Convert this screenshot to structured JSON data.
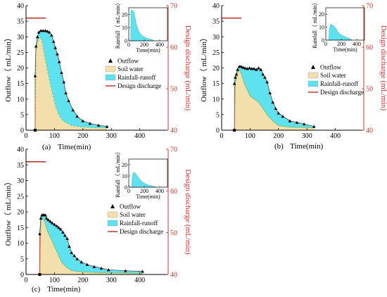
{
  "colors": {
    "soil_water": "#f3dfab",
    "rainfall_runoff": "#5fe2ef",
    "outflow_marker": "#000000",
    "design_line": "#c0392b",
    "right_axis": "#c0392b",
    "divider_line": "#74c47a",
    "inset_fill": "#5fe2ef"
  },
  "legend_labels": {
    "outflow": "Outflow",
    "soil_water": "Soil water",
    "rainfall_runoff": "Rainfall-runoff",
    "design_discharge": "Design discharge"
  },
  "chart_data": [
    {
      "type": "area",
      "caption": "(a)",
      "xlabel": "Time(min)",
      "ylabel": "Outflow（ mL/min）",
      "y2label": "Design discharge (mL/min)",
      "xlim": [
        0,
        500
      ],
      "ylim": [
        0,
        40
      ],
      "y2lim": [
        40,
        70
      ],
      "xticks": [
        0,
        100,
        200,
        300,
        400
      ],
      "yticks": [
        0,
        5,
        10,
        15,
        20,
        25,
        30,
        35,
        40
      ],
      "y2ticks": [
        40,
        50,
        60,
        70
      ],
      "design_discharge": 67,
      "legend_position": "right",
      "outflow_points": [
        [
          32,
          17.5
        ],
        [
          35,
          27
        ],
        [
          40,
          30
        ],
        [
          45,
          31.5
        ],
        [
          52,
          32
        ],
        [
          60,
          32
        ],
        [
          68,
          32
        ],
        [
          75,
          31.8
        ],
        [
          82,
          31.5
        ],
        [
          90,
          30.5
        ],
        [
          97,
          28.5
        ],
        [
          103,
          26.5
        ],
        [
          110,
          24.5
        ],
        [
          117,
          22
        ],
        [
          125,
          18.5
        ],
        [
          133,
          15.5
        ],
        [
          140,
          12
        ],
        [
          150,
          9.5
        ],
        [
          165,
          6.5
        ],
        [
          180,
          4.5
        ],
        [
          200,
          3
        ],
        [
          225,
          2.2
        ],
        [
          255,
          1.6
        ],
        [
          285,
          1.2
        ]
      ],
      "soil_water_points": [
        [
          32,
          0
        ],
        [
          35,
          26
        ],
        [
          42,
          29
        ],
        [
          50,
          30
        ],
        [
          58,
          28
        ],
        [
          65,
          24
        ],
        [
          75,
          19.5
        ],
        [
          85,
          15
        ],
        [
          95,
          11
        ],
        [
          105,
          7.5
        ],
        [
          115,
          5
        ],
        [
          130,
          3
        ],
        [
          160,
          1.5
        ],
        [
          200,
          1
        ],
        [
          240,
          0.8
        ],
        [
          285,
          0.7
        ]
      ],
      "inset": {
        "xlabel": "Time(min)",
        "ylabel": "Rainfall（ mL/min）",
        "xlim": [
          0,
          500
        ],
        "ylim": [
          0,
          25
        ],
        "xticks": [
          0,
          200,
          400
        ],
        "yticks": [
          0,
          10,
          20
        ],
        "points": [
          [
            0,
            0
          ],
          [
            25,
            0
          ],
          [
            28,
            23
          ],
          [
            50,
            23
          ],
          [
            65,
            22
          ],
          [
            80,
            18
          ],
          [
            100,
            12
          ],
          [
            130,
            7
          ],
          [
            170,
            4
          ],
          [
            230,
            2
          ],
          [
            300,
            1
          ],
          [
            330,
            0
          ]
        ]
      }
    },
    {
      "type": "area",
      "caption": "(b)",
      "xlabel": "Time(min)",
      "ylabel": "Outflow（ mL/min）",
      "y2label": "Design discharge (mL/min)",
      "xlim": [
        0,
        500
      ],
      "ylim": [
        0,
        40
      ],
      "y2lim": [
        40,
        70
      ],
      "xticks": [
        0,
        100,
        200,
        300,
        400
      ],
      "yticks": [
        0,
        5,
        10,
        15,
        20,
        25,
        30,
        35,
        40
      ],
      "y2ticks": [
        40,
        50,
        60,
        70
      ],
      "design_discharge": 67,
      "legend_position": "center",
      "outflow_points": [
        [
          45,
          15
        ],
        [
          48,
          17
        ],
        [
          52,
          18
        ],
        [
          56,
          19.5
        ],
        [
          62,
          20.5
        ],
        [
          68,
          20.5
        ],
        [
          75,
          20.2
        ],
        [
          82,
          20
        ],
        [
          90,
          19.8
        ],
        [
          98,
          20
        ],
        [
          106,
          19.8
        ],
        [
          114,
          19.8
        ],
        [
          122,
          19.5
        ],
        [
          130,
          20
        ],
        [
          138,
          19.5
        ],
        [
          145,
          18
        ],
        [
          152,
          17
        ],
        [
          160,
          15.5
        ],
        [
          170,
          12
        ],
        [
          180,
          9
        ],
        [
          190,
          7
        ],
        [
          200,
          5.5
        ],
        [
          215,
          4.5
        ],
        [
          240,
          3
        ],
        [
          265,
          2.5
        ],
        [
          290,
          2
        ],
        [
          325,
          1.2
        ]
      ],
      "soil_water_points": [
        [
          45,
          0
        ],
        [
          48,
          15
        ],
        [
          55,
          18.5
        ],
        [
          62,
          19.5
        ],
        [
          70,
          18
        ],
        [
          80,
          15
        ],
        [
          90,
          13
        ],
        [
          100,
          11
        ],
        [
          115,
          10
        ],
        [
          130,
          9
        ],
        [
          145,
          7
        ],
        [
          160,
          5
        ],
        [
          180,
          3
        ],
        [
          200,
          1.5
        ],
        [
          240,
          1
        ],
        [
          325,
          0.8
        ]
      ],
      "inset": {
        "xlabel": "Time(min)",
        "ylabel": "Rainfall（ mL/min）",
        "xlim": [
          0,
          500
        ],
        "ylim": [
          0,
          25
        ],
        "xticks": [
          0,
          200,
          400
        ],
        "yticks": [
          0,
          10,
          20
        ],
        "points": [
          [
            0,
            0
          ],
          [
            40,
            0
          ],
          [
            45,
            8
          ],
          [
            60,
            12
          ],
          [
            80,
            12
          ],
          [
            100,
            11
          ],
          [
            130,
            9
          ],
          [
            160,
            6
          ],
          [
            200,
            4
          ],
          [
            250,
            2.5
          ],
          [
            300,
            1.5
          ],
          [
            340,
            0
          ]
        ]
      }
    },
    {
      "type": "area",
      "caption": "(c)",
      "xlabel": "Time(min)",
      "ylabel": "Outflow（ mL/min）",
      "y2label": "Design discharge (mL/min)",
      "xlim": [
        0,
        500
      ],
      "ylim": [
        0,
        40
      ],
      "y2lim": [
        40,
        70
      ],
      "xticks": [
        0,
        100,
        200,
        300,
        400
      ],
      "yticks": [
        0,
        5,
        10,
        15,
        20,
        25,
        30,
        35,
        40
      ],
      "y2ticks": [
        40,
        50,
        60,
        70
      ],
      "design_discharge": 67,
      "legend_position": "right",
      "outflow_points": [
        [
          48,
          13
        ],
        [
          52,
          18
        ],
        [
          56,
          19
        ],
        [
          60,
          19
        ],
        [
          64,
          19
        ],
        [
          68,
          19
        ],
        [
          72,
          18
        ],
        [
          78,
          17.5
        ],
        [
          85,
          17
        ],
        [
          92,
          16.5
        ],
        [
          100,
          16
        ],
        [
          108,
          15.5
        ],
        [
          115,
          15
        ],
        [
          122,
          14.5
        ],
        [
          130,
          13.5
        ],
        [
          137,
          12.5
        ],
        [
          145,
          11.5
        ],
        [
          152,
          9
        ],
        [
          160,
          7
        ],
        [
          170,
          6
        ],
        [
          180,
          5
        ],
        [
          195,
          4
        ],
        [
          215,
          3.2
        ],
        [
          240,
          2.5
        ],
        [
          265,
          2
        ],
        [
          290,
          1.5
        ],
        [
          350,
          1.2
        ],
        [
          410,
          1
        ]
      ],
      "soil_water_points": [
        [
          48,
          0
        ],
        [
          52,
          17
        ],
        [
          58,
          18
        ],
        [
          65,
          17
        ],
        [
          75,
          14
        ],
        [
          85,
          12
        ],
        [
          95,
          10
        ],
        [
          105,
          8
        ],
        [
          115,
          6
        ],
        [
          125,
          4
        ],
        [
          140,
          2.5
        ],
        [
          160,
          1.2
        ],
        [
          200,
          0.8
        ],
        [
          250,
          0.6
        ],
        [
          300,
          0.5
        ],
        [
          410,
          0.4
        ]
      ],
      "inset": {
        "xlabel": "Time(min)",
        "ylabel": "Rainfall（ mL/min）",
        "xlim": [
          0,
          500
        ],
        "ylim": [
          0,
          25
        ],
        "xticks": [
          0,
          200,
          400
        ],
        "yticks": [
          0,
          10,
          20
        ],
        "points": [
          [
            0,
            0
          ],
          [
            40,
            0
          ],
          [
            45,
            9
          ],
          [
            60,
            13
          ],
          [
            80,
            13
          ],
          [
            100,
            11
          ],
          [
            130,
            8
          ],
          [
            160,
            5.5
          ],
          [
            200,
            3.5
          ],
          [
            250,
            2
          ],
          [
            300,
            1.2
          ],
          [
            360,
            0
          ]
        ]
      }
    }
  ]
}
